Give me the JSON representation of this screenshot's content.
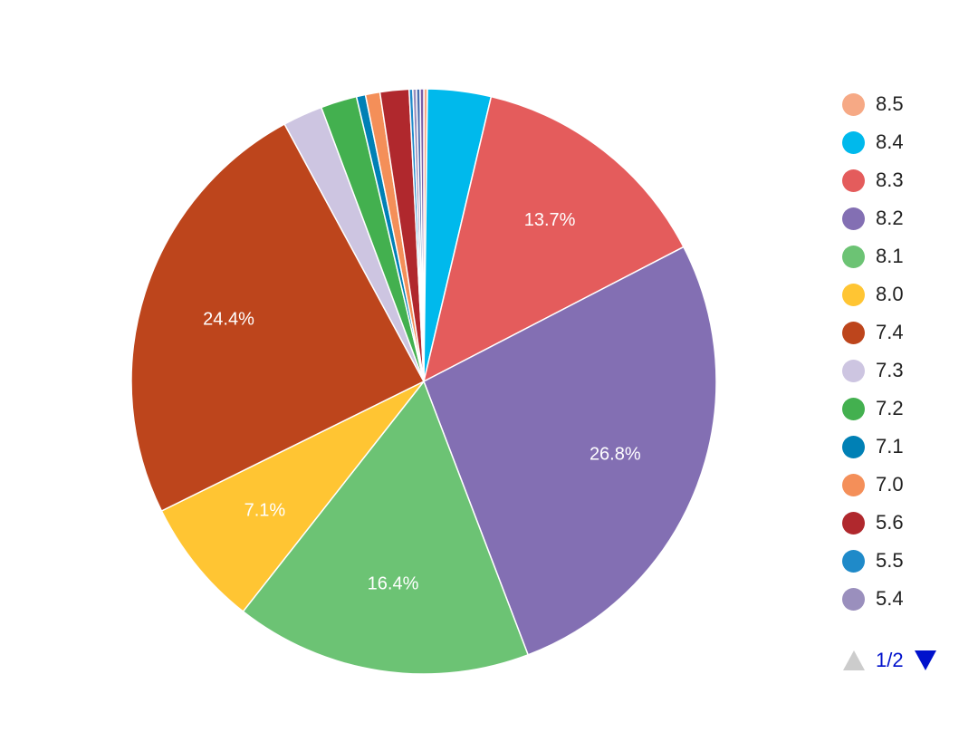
{
  "chart_data": {
    "type": "pie",
    "title": "",
    "slices": [
      {
        "label": "8.5",
        "value": 0.2,
        "color": "#f6a985",
        "label_text": ""
      },
      {
        "label": "8.4",
        "value": 3.5,
        "color": "#00b9ec",
        "label_text": ""
      },
      {
        "label": "8.3",
        "value": 13.7,
        "color": "#e45c5c",
        "label_text": "13.7%"
      },
      {
        "label": "8.2",
        "value": 26.8,
        "color": "#836fb3",
        "label_text": "26.8%"
      },
      {
        "label": "8.1",
        "value": 16.4,
        "color": "#6cc374",
        "label_text": "16.4%"
      },
      {
        "label": "8.0",
        "value": 7.1,
        "color": "#ffc533",
        "label_text": "7.1%"
      },
      {
        "label": "7.4",
        "value": 24.4,
        "color": "#bd451c",
        "label_text": "24.4%"
      },
      {
        "label": "7.3",
        "value": 2.2,
        "color": "#cdc5e1",
        "label_text": ""
      },
      {
        "label": "7.2",
        "value": 2.0,
        "color": "#43b04f",
        "label_text": ""
      },
      {
        "label": "7.1",
        "value": 0.5,
        "color": "#0080b5",
        "label_text": ""
      },
      {
        "label": "7.0",
        "value": 0.8,
        "color": "#f48f59",
        "label_text": ""
      },
      {
        "label": "5.6",
        "value": 1.6,
        "color": "#b0282d",
        "label_text": ""
      },
      {
        "label": "5.5",
        "value": 0.2,
        "color": "#1f8ac9",
        "label_text": ""
      },
      {
        "label": "5.4",
        "value": 0.2,
        "color": "#9a8fbd",
        "label_text": ""
      },
      {
        "label": "",
        "value": 0.2,
        "color": "#4a6fb0",
        "label_text": ""
      },
      {
        "label": "",
        "value": 0.2,
        "color": "#7a5ea8",
        "label_text": ""
      }
    ],
    "legend": {
      "position": "right",
      "items": [
        {
          "label": "8.5",
          "color": "#f6a985"
        },
        {
          "label": "8.4",
          "color": "#00b9ec"
        },
        {
          "label": "8.3",
          "color": "#e45c5c"
        },
        {
          "label": "8.2",
          "color": "#836fb3"
        },
        {
          "label": "8.1",
          "color": "#6cc374"
        },
        {
          "label": "8.0",
          "color": "#ffc533"
        },
        {
          "label": "7.4",
          "color": "#bd451c"
        },
        {
          "label": "7.3",
          "color": "#cdc5e1"
        },
        {
          "label": "7.2",
          "color": "#43b04f"
        },
        {
          "label": "7.1",
          "color": "#0080b5"
        },
        {
          "label": "7.0",
          "color": "#f48f59"
        },
        {
          "label": "5.6",
          "color": "#b0282d"
        },
        {
          "label": "5.5",
          "color": "#1f8ac9"
        },
        {
          "label": "5.4",
          "color": "#9a8fbd"
        }
      ]
    }
  },
  "legend_pager": {
    "page_text": "1/2",
    "prev_icon": "triangle-up-icon",
    "next_icon": "triangle-down-icon",
    "prev_color": "#cccccc",
    "next_color": "#0011cc"
  }
}
